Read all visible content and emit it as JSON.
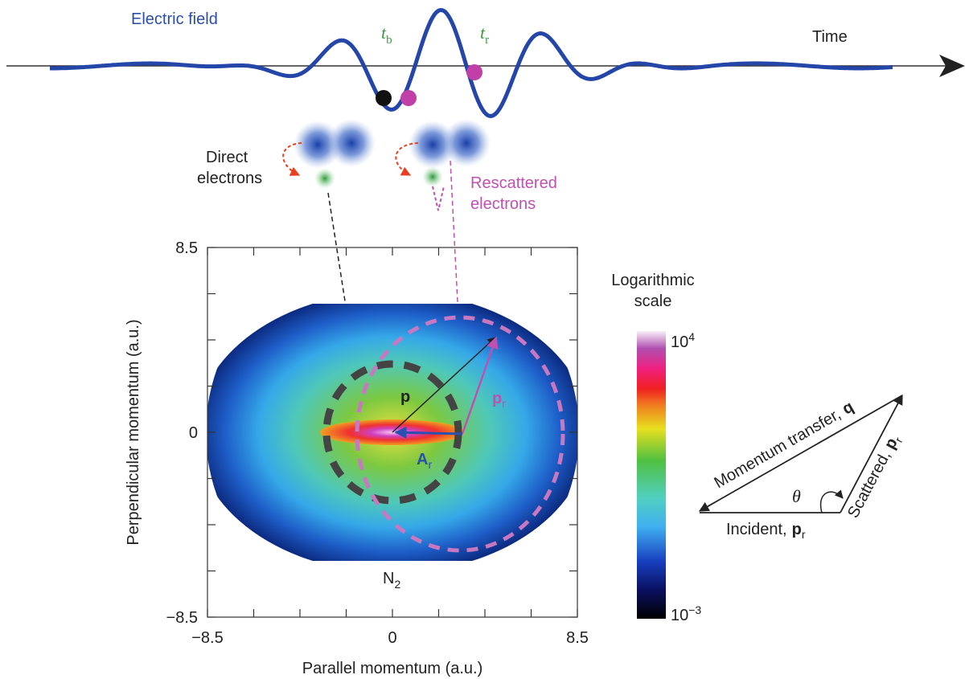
{
  "header": {
    "wave_label": "Electric field",
    "time_label": "Time",
    "t_b": {
      "symbol": "t",
      "subscript": "b"
    },
    "t_r": {
      "symbol": "t",
      "subscript": "r"
    }
  },
  "electrons": {
    "direct": [
      "Direct",
      "electrons"
    ],
    "rescattered": [
      "Rescattered",
      "electrons"
    ]
  },
  "plot": {
    "x_axis_label": "Parallel momentum (a.u.)",
    "y_axis_label": "Perpendicular momentum (a.u.)",
    "x_ticks": [
      "−8.5",
      "0",
      "8.5"
    ],
    "y_ticks": [
      "8.5",
      "0",
      "−8.5"
    ],
    "molecule": {
      "symbol": "N",
      "subscript": "2"
    },
    "vectors": {
      "p": "p",
      "p_r": {
        "symbol": "p",
        "subscript": "r"
      },
      "A_r": {
        "symbol": "A",
        "subscript": "r"
      }
    }
  },
  "colorbar": {
    "title": [
      "Logarithmic",
      "scale"
    ],
    "max": {
      "base": "10",
      "exponent": "4"
    },
    "min": {
      "base": "10",
      "exponent": "−3"
    }
  },
  "triangle": {
    "transfer": {
      "text": "Momentum transfer,",
      "symbol": "q"
    },
    "scattered": {
      "text": "Scattered,",
      "symbol": "p",
      "subscript": "r"
    },
    "incident": {
      "text": "Incident,",
      "symbol": "p",
      "subscript": "r"
    },
    "angle": "θ"
  }
}
